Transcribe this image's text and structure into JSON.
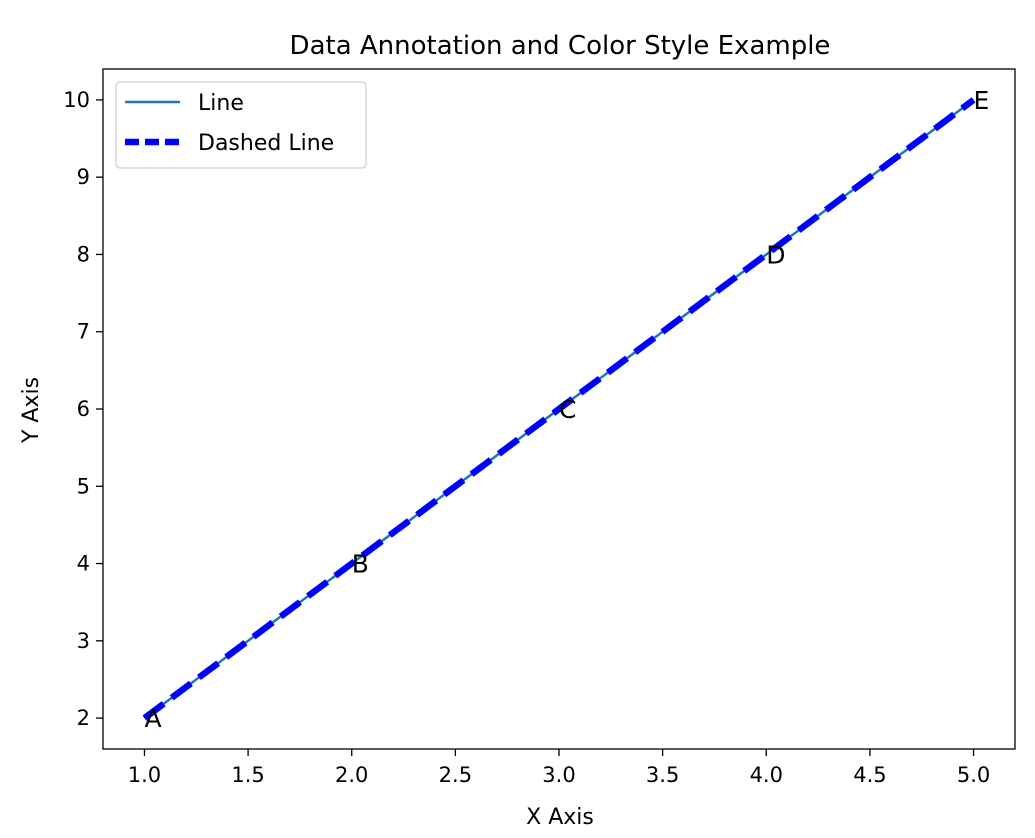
{
  "chart_data": {
    "type": "line",
    "title": "Data Annotation and Color Style Example",
    "xlabel": "X Axis",
    "ylabel": "Y Axis",
    "xlim": [
      0.8,
      5.2
    ],
    "ylim": [
      1.6,
      10.4
    ],
    "x_ticks": [
      1.0,
      1.5,
      2.0,
      2.5,
      3.0,
      3.5,
      4.0,
      4.5,
      5.0
    ],
    "x_tick_labels": [
      "1.0",
      "1.5",
      "2.0",
      "2.5",
      "3.0",
      "3.5",
      "4.0",
      "4.5",
      "5.0"
    ],
    "y_ticks": [
      2,
      3,
      4,
      5,
      6,
      7,
      8,
      9,
      10
    ],
    "y_tick_labels": [
      "2",
      "3",
      "4",
      "5",
      "6",
      "7",
      "8",
      "9",
      "10"
    ],
    "grid": false,
    "legend_position": "upper-left",
    "x": [
      1,
      2,
      3,
      4,
      5
    ],
    "series": [
      {
        "name": "Line",
        "values": [
          2,
          4,
          6,
          8,
          10
        ],
        "color": "#1f77b4",
        "style": "solid"
      },
      {
        "name": "Dashed Line",
        "values": [
          2,
          4,
          6,
          8,
          10
        ],
        "color": "#0000ff",
        "style": "dashed"
      }
    ],
    "annotations": [
      {
        "text": "A",
        "x": 1,
        "y": 2
      },
      {
        "text": "B",
        "x": 2,
        "y": 4
      },
      {
        "text": "C",
        "x": 3,
        "y": 6
      },
      {
        "text": "D",
        "x": 4,
        "y": 8
      },
      {
        "text": "E",
        "x": 5,
        "y": 10
      }
    ]
  }
}
